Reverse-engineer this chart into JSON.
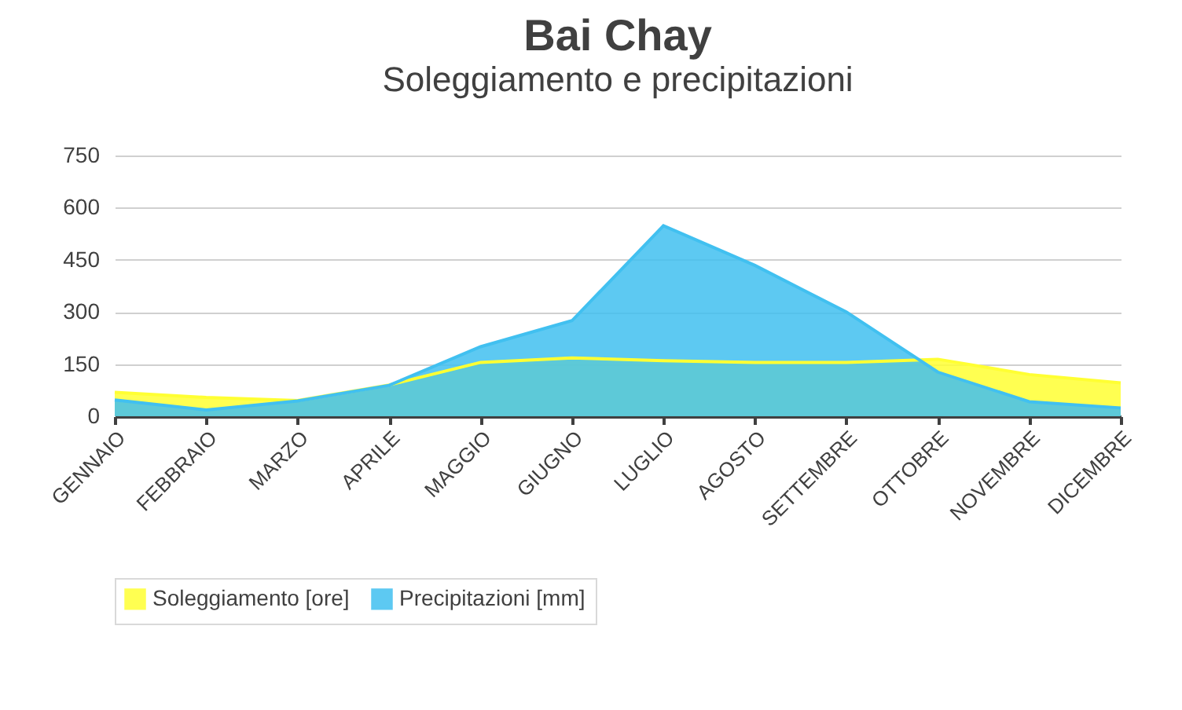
{
  "chart_data": {
    "type": "area",
    "title": "Bai Chay",
    "subtitle": "Soleggiamento e precipitazioni",
    "categories": [
      "GENNAIO",
      "FEBBRAIO",
      "MARZO",
      "APRILE",
      "MAGGIO",
      "GIUGNO",
      "LUGLIO",
      "AGOSTO",
      "SETTEMBRE",
      "OTTOBRE",
      "NOVEMBRE",
      "DICEMBRE"
    ],
    "series": [
      {
        "name": "Soleggiamento [ore]",
        "color": "#ffff33",
        "values": [
          69,
          54,
          45,
          90,
          155,
          168,
          160,
          155,
          155,
          164,
          120,
          96
        ]
      },
      {
        "name": "Precipitazioni [mm]",
        "color": "#41c0f0",
        "values": [
          47,
          18,
          44,
          89,
          200,
          275,
          548,
          434,
          300,
          127,
          42,
          24
        ]
      }
    ],
    "ylim": [
      0,
      750
    ],
    "yticks": [
      0,
      150,
      300,
      450,
      600,
      750
    ],
    "grid": "y",
    "legend": "bottom"
  }
}
